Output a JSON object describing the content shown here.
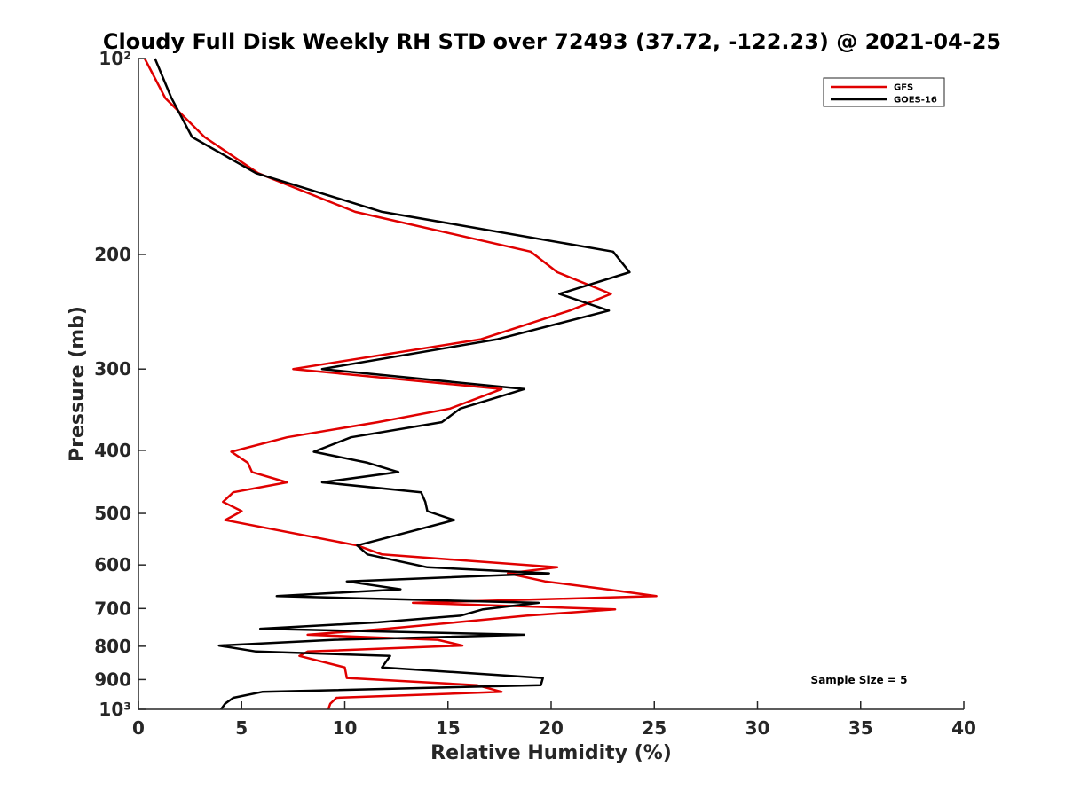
{
  "chart_data": {
    "type": "line",
    "title": "Cloudy Full Disk Weekly RH STD over 72493 (37.72, -122.23) @ 2021-04-25",
    "xlabel": "Relative Humidity (%)",
    "ylabel": "Pressure (mb)",
    "xlim": [
      0,
      40
    ],
    "ylim": [
      100,
      1000
    ],
    "y_scale": "log",
    "y_reversed": true,
    "x_ticks": [
      0,
      5,
      10,
      15,
      20,
      25,
      30,
      35,
      40
    ],
    "x_tick_labels": [
      "0",
      "5",
      "10",
      "15",
      "20",
      "25",
      "30",
      "35",
      "40"
    ],
    "y_ticks": [
      100,
      200,
      300,
      400,
      500,
      600,
      700,
      800,
      900,
      1000
    ],
    "y_tick_labels": [
      "10²",
      "200",
      "300",
      "400",
      "500",
      "600",
      "700",
      "800",
      "900",
      "10³"
    ],
    "grid": false,
    "legend_position": "top-right",
    "annotation": "Sample Size = 5",
    "series": [
      {
        "name": "GFS",
        "color": "#e00000",
        "points": [
          [
            0.3,
            100
          ],
          [
            1.3,
            115
          ],
          [
            3.2,
            132
          ],
          [
            5.8,
            150
          ],
          [
            10.5,
            172
          ],
          [
            19.0,
            198
          ],
          [
            20.3,
            213
          ],
          [
            22.9,
            230
          ],
          [
            20.9,
            244
          ],
          [
            16.6,
            270
          ],
          [
            7.5,
            300
          ],
          [
            17.6,
            322
          ],
          [
            15.1,
            345
          ],
          [
            11.6,
            362
          ],
          [
            7.2,
            382
          ],
          [
            4.5,
            402
          ],
          [
            5.3,
            418
          ],
          [
            5.5,
            432
          ],
          [
            7.2,
            448
          ],
          [
            4.6,
            464
          ],
          [
            4.1,
            480
          ],
          [
            5.0,
            496
          ],
          [
            4.2,
            512
          ],
          [
            10.6,
            560
          ],
          [
            11.8,
            578
          ],
          [
            20.3,
            605
          ],
          [
            17.9,
            618
          ],
          [
            19.7,
            636
          ],
          [
            22.7,
            654
          ],
          [
            25.1,
            670
          ],
          [
            13.3,
            686
          ],
          [
            23.1,
            702
          ],
          [
            18.8,
            718
          ],
          [
            15.4,
            735
          ],
          [
            12.0,
            752
          ],
          [
            8.2,
            768
          ],
          [
            14.5,
            782
          ],
          [
            15.7,
            798
          ],
          [
            8.2,
            815
          ],
          [
            7.8,
            828
          ],
          [
            10.0,
            862
          ],
          [
            10.1,
            895
          ],
          [
            16.4,
            918
          ],
          [
            17.6,
            940
          ],
          [
            9.6,
            960
          ],
          [
            9.3,
            980
          ],
          [
            9.2,
            1000
          ]
        ]
      },
      {
        "name": "GOES-16",
        "color": "#000000",
        "points": [
          [
            0.8,
            100
          ],
          [
            1.6,
            115
          ],
          [
            2.6,
            132
          ],
          [
            5.7,
            150
          ],
          [
            11.8,
            172
          ],
          [
            23.0,
            198
          ],
          [
            23.8,
            213
          ],
          [
            20.4,
            230
          ],
          [
            22.8,
            244
          ],
          [
            17.4,
            270
          ],
          [
            8.9,
            300
          ],
          [
            18.7,
            322
          ],
          [
            15.6,
            345
          ],
          [
            14.7,
            362
          ],
          [
            10.3,
            382
          ],
          [
            8.5,
            402
          ],
          [
            11.1,
            418
          ],
          [
            12.6,
            432
          ],
          [
            8.9,
            448
          ],
          [
            13.7,
            464
          ],
          [
            13.9,
            480
          ],
          [
            14.0,
            496
          ],
          [
            15.3,
            512
          ],
          [
            10.6,
            560
          ],
          [
            11.1,
            578
          ],
          [
            14.0,
            605
          ],
          [
            19.9,
            618
          ],
          [
            10.1,
            636
          ],
          [
            12.7,
            654
          ],
          [
            6.7,
            670
          ],
          [
            19.4,
            686
          ],
          [
            16.7,
            702
          ],
          [
            15.6,
            718
          ],
          [
            11.6,
            735
          ],
          [
            5.9,
            752
          ],
          [
            18.7,
            768
          ],
          [
            9.5,
            782
          ],
          [
            3.9,
            798
          ],
          [
            5.7,
            815
          ],
          [
            12.2,
            828
          ],
          [
            11.8,
            862
          ],
          [
            19.6,
            895
          ],
          [
            19.5,
            918
          ],
          [
            6.0,
            940
          ],
          [
            4.6,
            960
          ],
          [
            4.2,
            980
          ],
          [
            4.0,
            1000
          ]
        ]
      }
    ]
  }
}
